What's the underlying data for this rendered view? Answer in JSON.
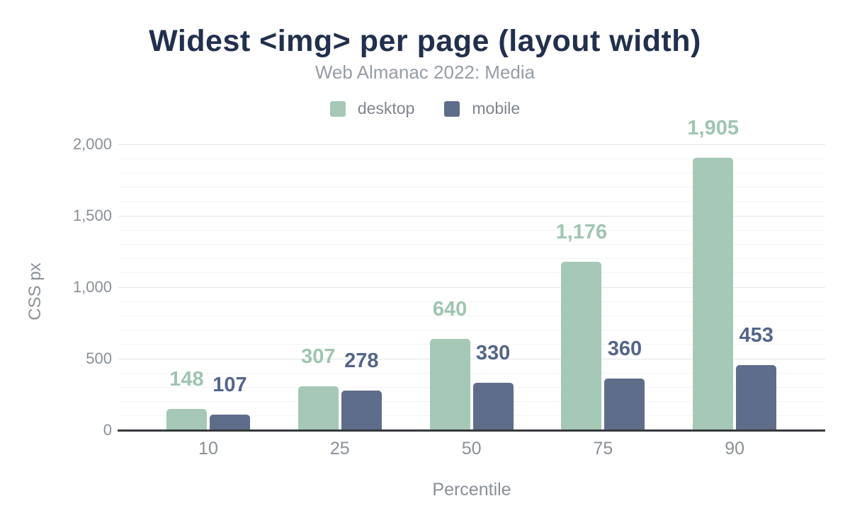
{
  "chart_data": {
    "type": "bar",
    "title": "Widest <img> per page (layout width)",
    "subtitle": "Web Almanac 2022: Media",
    "xlabel": "Percentile",
    "ylabel": "CSS px",
    "categories": [
      "10",
      "25",
      "50",
      "75",
      "90"
    ],
    "series": [
      {
        "name": "desktop",
        "color": "#a5c8b7",
        "label_color": "#9fc5b1",
        "values": [
          148,
          307,
          640,
          1176,
          1905
        ],
        "value_labels": [
          "148",
          "307",
          "640",
          "1,176",
          "1,905"
        ]
      },
      {
        "name": "mobile",
        "color": "#5e6d8a",
        "label_color": "#54658a",
        "values": [
          107,
          278,
          330,
          360,
          453
        ],
        "value_labels": [
          "107",
          "278",
          "330",
          "360",
          "453"
        ]
      }
    ],
    "ylim": [
      0,
      2000
    ],
    "yticks": [
      {
        "value": 0,
        "label": "0"
      },
      {
        "value": 500,
        "label": "500"
      },
      {
        "value": 1000,
        "label": "1,000"
      },
      {
        "value": 1500,
        "label": "1,500"
      },
      {
        "value": 2000,
        "label": "2,000"
      }
    ],
    "grid_minor_step": 100,
    "grid_major_step": 500,
    "grid": "horizontal",
    "legend_position": "top-center"
  }
}
